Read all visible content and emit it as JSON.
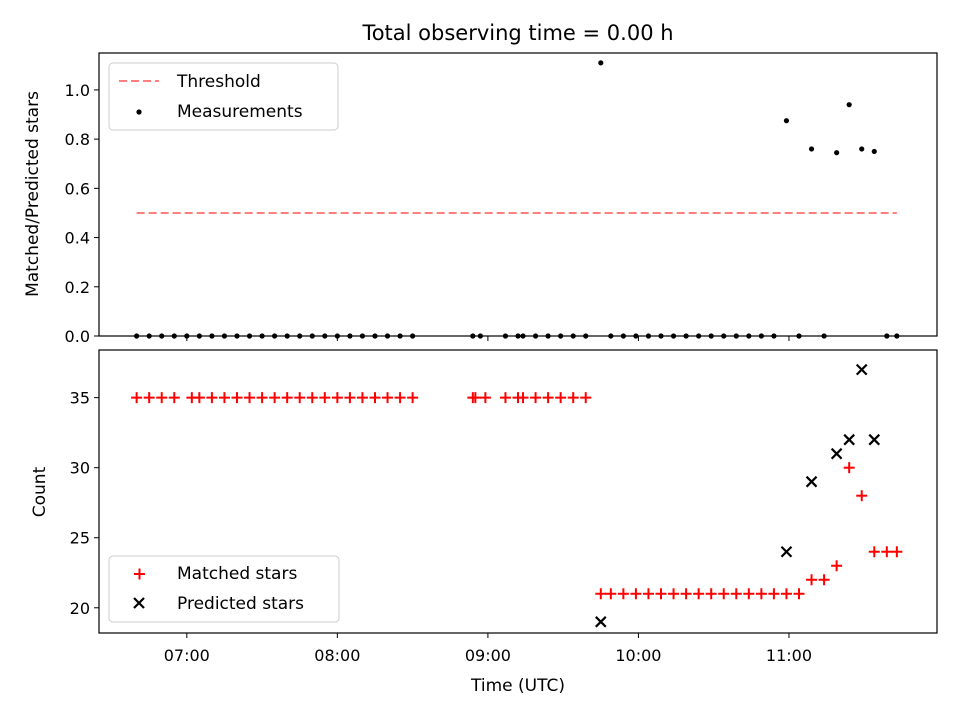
{
  "title": "Total observing time = 0.00 h",
  "colors": {
    "threshold": "#ff7f7f",
    "measurement": "#000000",
    "matched": "#ff0000",
    "predicted": "#000000"
  },
  "chart_data": [
    {
      "type": "scatter",
      "ylabel": "Matched/Predicted stars",
      "xlim": [
        "06:25",
        "11:59"
      ],
      "ylim": [
        0,
        1.15
      ],
      "yticks": [
        "0.0",
        "0.2",
        "0.4",
        "0.6",
        "0.8",
        "1.0"
      ],
      "legend_position": "top-left",
      "threshold": {
        "name": "Threshold",
        "value": 0.5,
        "x": [
          "06:40",
          "11:43"
        ]
      },
      "series": [
        {
          "name": "Measurements",
          "points": [
            [
              "06:40",
              0
            ],
            [
              "06:45",
              0
            ],
            [
              "06:50",
              0
            ],
            [
              "06:55",
              0
            ],
            [
              "07:00",
              0
            ],
            [
              "07:05",
              0
            ],
            [
              "07:10",
              0
            ],
            [
              "07:15",
              0
            ],
            [
              "07:20",
              0
            ],
            [
              "07:25",
              0
            ],
            [
              "07:30",
              0
            ],
            [
              "07:35",
              0
            ],
            [
              "07:40",
              0
            ],
            [
              "07:45",
              0
            ],
            [
              "07:50",
              0
            ],
            [
              "07:55",
              0
            ],
            [
              "08:00",
              0
            ],
            [
              "08:05",
              0
            ],
            [
              "08:10",
              0
            ],
            [
              "08:15",
              0
            ],
            [
              "08:20",
              0
            ],
            [
              "08:25",
              0
            ],
            [
              "08:30",
              0
            ],
            [
              "08:54",
              0
            ],
            [
              "08:57",
              0
            ],
            [
              "09:07",
              0
            ],
            [
              "09:12",
              0
            ],
            [
              "09:14",
              0
            ],
            [
              "09:19",
              0
            ],
            [
              "09:24",
              0
            ],
            [
              "09:29",
              0
            ],
            [
              "09:34",
              0
            ],
            [
              "09:39",
              0
            ],
            [
              "09:45",
              1.11
            ],
            [
              "09:49",
              0
            ],
            [
              "09:54",
              0
            ],
            [
              "09:59",
              0
            ],
            [
              "10:04",
              0
            ],
            [
              "10:09",
              0
            ],
            [
              "10:14",
              0
            ],
            [
              "10:19",
              0
            ],
            [
              "10:24",
              0
            ],
            [
              "10:29",
              0
            ],
            [
              "10:34",
              0
            ],
            [
              "10:39",
              0
            ],
            [
              "10:44",
              0
            ],
            [
              "10:49",
              0
            ],
            [
              "10:54",
              0
            ],
            [
              "10:59",
              0.875
            ],
            [
              "11:04",
              0
            ],
            [
              "11:09",
              0.76
            ],
            [
              "11:14",
              0
            ],
            [
              "11:19",
              0.745
            ],
            [
              "11:24",
              0.94
            ],
            [
              "11:29",
              0.76
            ],
            [
              "11:34",
              0.75
            ],
            [
              "11:39",
              0
            ],
            [
              "11:43",
              0
            ]
          ]
        }
      ]
    },
    {
      "type": "scatter",
      "xlabel": "Time (UTC)",
      "ylabel": "Count",
      "xlim": [
        "06:25",
        "11:59"
      ],
      "ylim": [
        18.2,
        38.4
      ],
      "xticks": [
        "07:00",
        "08:00",
        "09:00",
        "10:00",
        "11:00"
      ],
      "yticks": [
        "20",
        "25",
        "30",
        "35"
      ],
      "legend_position": "bottom-left",
      "series": [
        {
          "name": "Matched stars",
          "marker": "+",
          "points": [
            [
              "06:40",
              35
            ],
            [
              "06:45",
              35
            ],
            [
              "06:50",
              35
            ],
            [
              "06:55",
              35
            ],
            [
              "07:02",
              35
            ],
            [
              "07:05",
              35
            ],
            [
              "07:10",
              35
            ],
            [
              "07:15",
              35
            ],
            [
              "07:20",
              35
            ],
            [
              "07:25",
              35
            ],
            [
              "07:30",
              35
            ],
            [
              "07:35",
              35
            ],
            [
              "07:40",
              35
            ],
            [
              "07:45",
              35
            ],
            [
              "07:50",
              35
            ],
            [
              "07:55",
              35
            ],
            [
              "08:00",
              35
            ],
            [
              "08:05",
              35
            ],
            [
              "08:10",
              35
            ],
            [
              "08:15",
              35
            ],
            [
              "08:20",
              35
            ],
            [
              "08:25",
              35
            ],
            [
              "08:30",
              35
            ],
            [
              "08:54",
              35
            ],
            [
              "08:55",
              35
            ],
            [
              "08:59",
              35
            ],
            [
              "09:07",
              35
            ],
            [
              "09:12",
              35
            ],
            [
              "09:14",
              35
            ],
            [
              "09:19",
              35
            ],
            [
              "09:24",
              35
            ],
            [
              "09:29",
              35
            ],
            [
              "09:34",
              35
            ],
            [
              "09:39",
              35
            ],
            [
              "09:45",
              21
            ],
            [
              "09:49",
              21
            ],
            [
              "09:54",
              21
            ],
            [
              "09:59",
              21
            ],
            [
              "10:04",
              21
            ],
            [
              "10:09",
              21
            ],
            [
              "10:14",
              21
            ],
            [
              "10:19",
              21
            ],
            [
              "10:24",
              21
            ],
            [
              "10:29",
              21
            ],
            [
              "10:34",
              21
            ],
            [
              "10:39",
              21
            ],
            [
              "10:44",
              21
            ],
            [
              "10:49",
              21
            ],
            [
              "10:54",
              21
            ],
            [
              "10:59",
              21
            ],
            [
              "11:04",
              21
            ],
            [
              "11:09",
              22
            ],
            [
              "11:14",
              22
            ],
            [
              "11:19",
              23
            ],
            [
              "11:24",
              30
            ],
            [
              "11:29",
              28
            ],
            [
              "11:34",
              24
            ],
            [
              "11:39",
              24
            ],
            [
              "11:43",
              24
            ]
          ]
        },
        {
          "name": "Predicted stars",
          "marker": "x",
          "points": [
            [
              "09:45",
              19
            ],
            [
              "10:59",
              24
            ],
            [
              "11:09",
              29
            ],
            [
              "11:19",
              31
            ],
            [
              "11:24",
              32
            ],
            [
              "11:29",
              37
            ],
            [
              "11:34",
              32
            ]
          ]
        }
      ]
    }
  ]
}
